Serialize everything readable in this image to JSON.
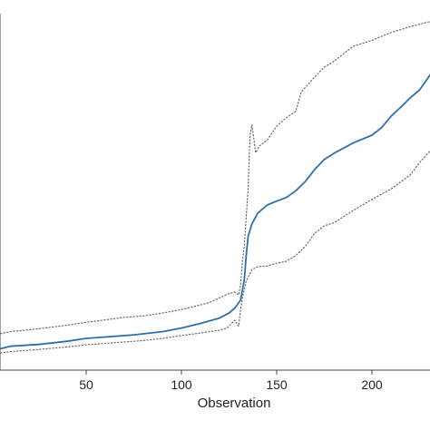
{
  "chart_data": {
    "type": "line",
    "title": "",
    "xlabel": "Observation",
    "ylabel": "",
    "xlim": [
      0,
      232
    ],
    "ylim": [
      0,
      1
    ],
    "grid": false,
    "legend": "none",
    "x_ticks": [
      50,
      100,
      150,
      200
    ],
    "x_tick_labels": [
      "50",
      "100",
      "150",
      "200"
    ],
    "colors": {
      "estimate": "#2f6fa8",
      "bounds": "#666666"
    },
    "series": [
      {
        "role": "estimate",
        "style": "solid",
        "points": [
          [
            0,
            0.053
          ],
          [
            10,
            0.067
          ],
          [
            25,
            0.072
          ],
          [
            40,
            0.081
          ],
          [
            50,
            0.089
          ],
          [
            60,
            0.093
          ],
          [
            75,
            0.099
          ],
          [
            90,
            0.108
          ],
          [
            100,
            0.118
          ],
          [
            110,
            0.131
          ],
          [
            120,
            0.146
          ],
          [
            125,
            0.16
          ],
          [
            128,
            0.174
          ],
          [
            131,
            0.196
          ],
          [
            133,
            0.253
          ],
          [
            134,
            0.321
          ],
          [
            135,
            0.375
          ],
          [
            137,
            0.41
          ],
          [
            140,
            0.44
          ],
          [
            145,
            0.463
          ],
          [
            150,
            0.474
          ],
          [
            155,
            0.484
          ],
          [
            160,
            0.503
          ],
          [
            165,
            0.529
          ],
          [
            170,
            0.563
          ],
          [
            175,
            0.591
          ],
          [
            180,
            0.608
          ],
          [
            190,
            0.637
          ],
          [
            200,
            0.659
          ],
          [
            205,
            0.68
          ],
          [
            210,
            0.712
          ],
          [
            215,
            0.737
          ],
          [
            220,
            0.763
          ],
          [
            225,
            0.786
          ],
          [
            232,
            0.839
          ]
        ]
      },
      {
        "role": "upper",
        "style": "dotted",
        "points": [
          [
            0,
            0.097
          ],
          [
            10,
            0.108
          ],
          [
            25,
            0.116
          ],
          [
            40,
            0.126
          ],
          [
            50,
            0.134
          ],
          [
            60,
            0.141
          ],
          [
            70,
            0.148
          ],
          [
            80,
            0.152
          ],
          [
            90,
            0.16
          ],
          [
            100,
            0.17
          ],
          [
            110,
            0.183
          ],
          [
            115,
            0.19
          ],
          [
            120,
            0.203
          ],
          [
            125,
            0.215
          ],
          [
            128,
            0.219
          ],
          [
            130,
            0.211
          ],
          [
            131,
            0.236
          ],
          [
            132,
            0.305
          ],
          [
            133,
            0.348
          ],
          [
            135,
            0.51
          ],
          [
            136,
            0.655
          ],
          [
            137,
            0.688
          ],
          [
            139,
            0.61
          ],
          [
            141,
            0.629
          ],
          [
            145,
            0.645
          ],
          [
            150,
            0.684
          ],
          [
            155,
            0.708
          ],
          [
            160,
            0.726
          ],
          [
            163,
            0.781
          ],
          [
            165,
            0.793
          ],
          [
            170,
            0.823
          ],
          [
            175,
            0.85
          ],
          [
            180,
            0.866
          ],
          [
            190,
            0.908
          ],
          [
            200,
            0.925
          ],
          [
            210,
            0.947
          ],
          [
            220,
            0.963
          ],
          [
            232,
            0.98
          ]
        ]
      },
      {
        "role": "lower",
        "style": "dotted",
        "points": [
          [
            0,
            0.044
          ],
          [
            10,
            0.052
          ],
          [
            25,
            0.058
          ],
          [
            40,
            0.065
          ],
          [
            50,
            0.071
          ],
          [
            60,
            0.075
          ],
          [
            70,
            0.079
          ],
          [
            80,
            0.083
          ],
          [
            90,
            0.089
          ],
          [
            100,
            0.097
          ],
          [
            110,
            0.104
          ],
          [
            120,
            0.112
          ],
          [
            124,
            0.118
          ],
          [
            126,
            0.129
          ],
          [
            128,
            0.14
          ],
          [
            130,
            0.123
          ],
          [
            131,
            0.168
          ],
          [
            132,
            0.203
          ],
          [
            134,
            0.249
          ],
          [
            137,
            0.282
          ],
          [
            140,
            0.29
          ],
          [
            145,
            0.292
          ],
          [
            150,
            0.3
          ],
          [
            155,
            0.305
          ],
          [
            160,
            0.321
          ],
          [
            165,
            0.347
          ],
          [
            170,
            0.384
          ],
          [
            175,
            0.405
          ],
          [
            180,
            0.413
          ],
          [
            190,
            0.447
          ],
          [
            200,
            0.479
          ],
          [
            210,
            0.508
          ],
          [
            220,
            0.547
          ],
          [
            225,
            0.582
          ],
          [
            232,
            0.624
          ]
        ]
      }
    ]
  }
}
